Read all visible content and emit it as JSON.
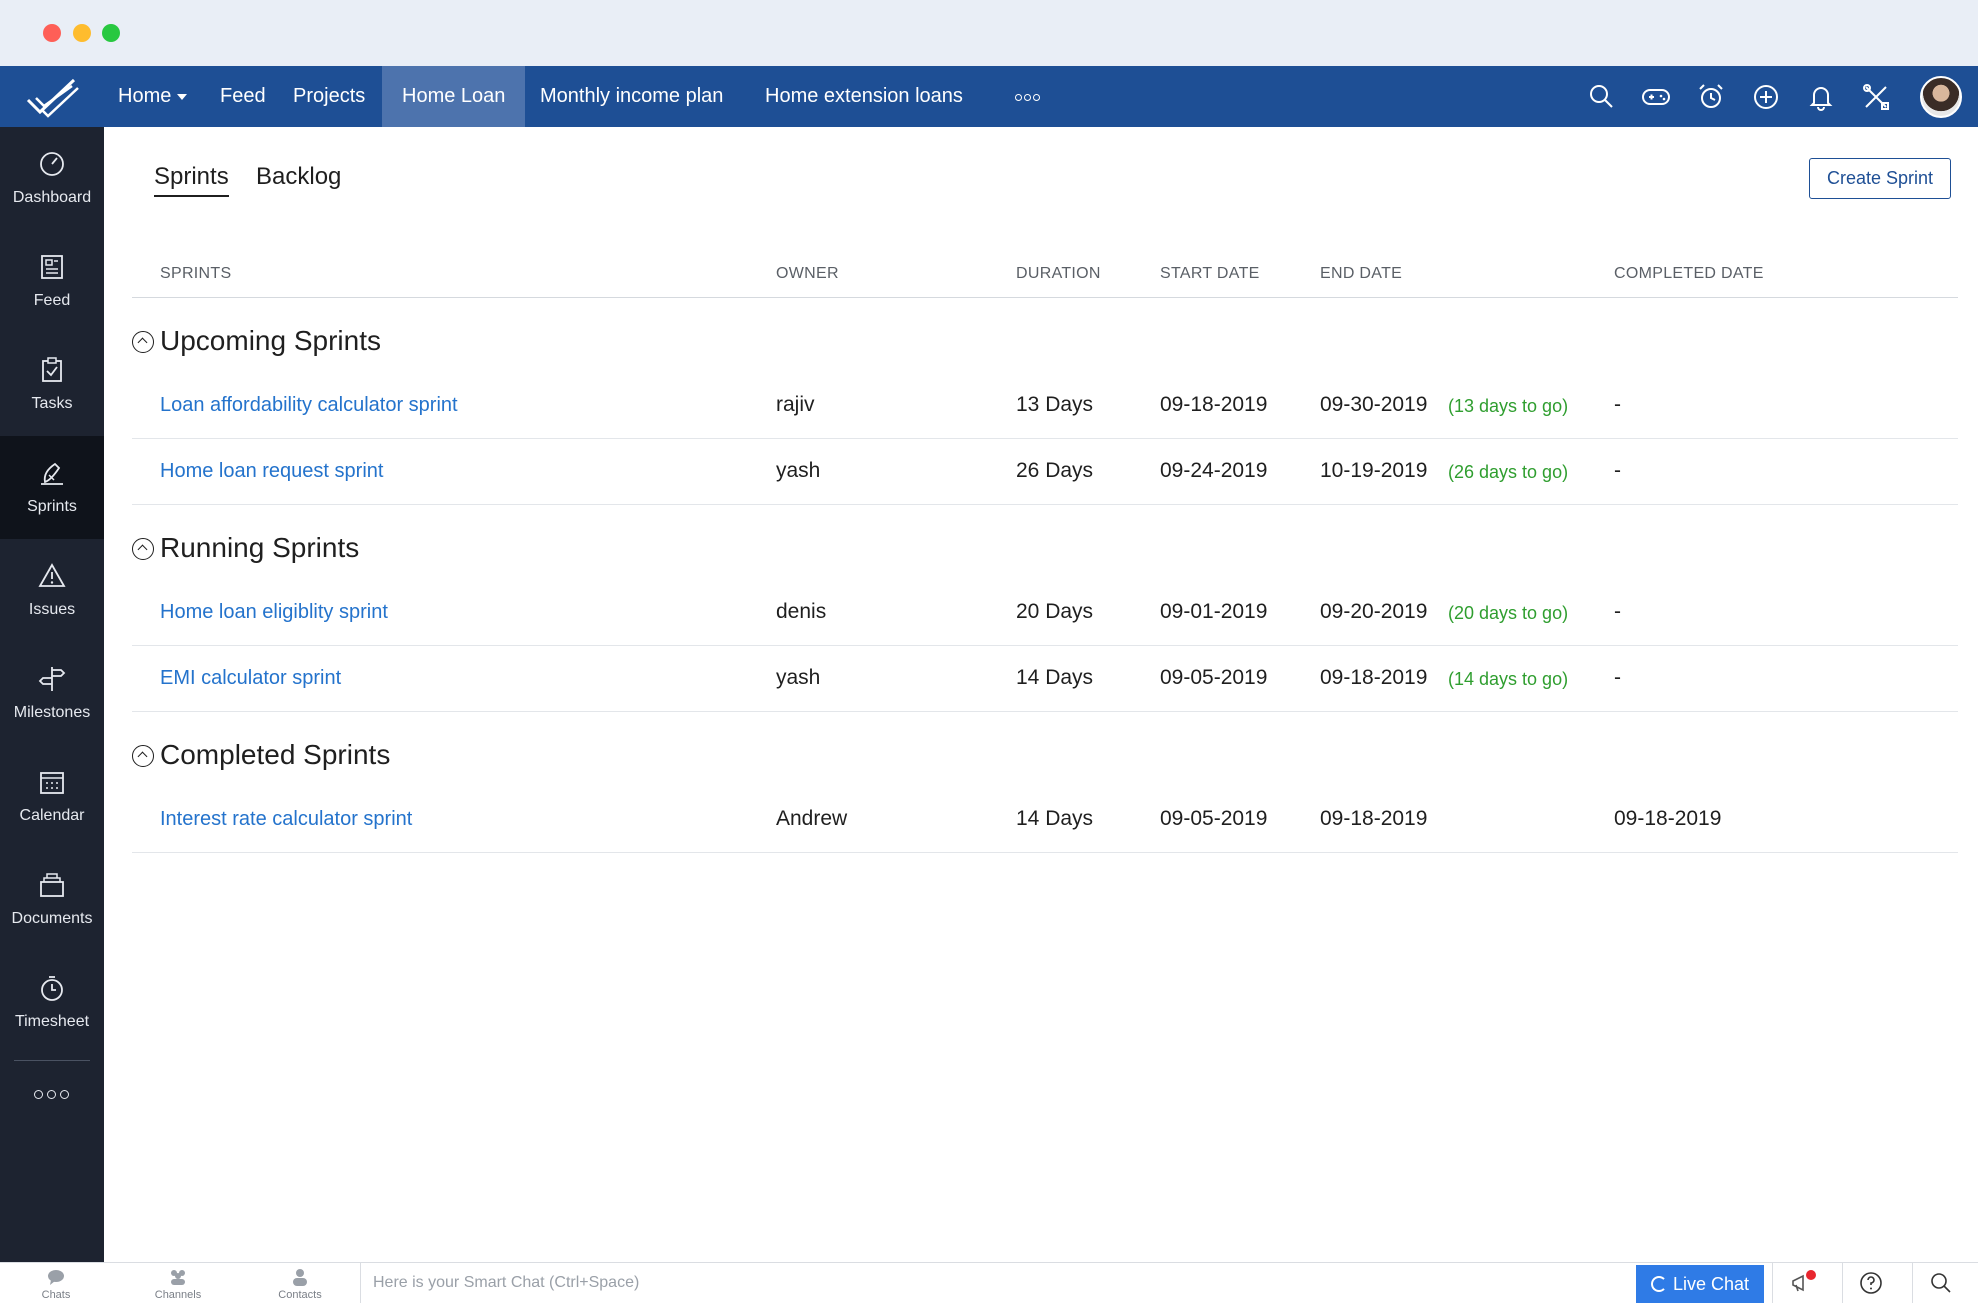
{
  "topnav": {
    "items": [
      {
        "label": "Home"
      },
      {
        "label": "Feed"
      },
      {
        "label": "Projects"
      },
      {
        "label": "Home Loan"
      },
      {
        "label": "Monthly income plan"
      },
      {
        "label": "Home extension loans"
      }
    ],
    "active": "Home Loan",
    "icons": [
      "search-icon",
      "gamepad-icon",
      "alarm-clock-icon",
      "plus-circle-icon",
      "bell-icon",
      "tools-icon"
    ]
  },
  "sidebar": {
    "items": [
      {
        "label": "Dashboard",
        "icon": "speedometer-icon"
      },
      {
        "label": "Feed",
        "icon": "newspaper-icon"
      },
      {
        "label": "Tasks",
        "icon": "clipboard-check-icon"
      },
      {
        "label": "Sprints",
        "icon": "sprint-icon"
      },
      {
        "label": "Issues",
        "icon": "warning-triangle-icon"
      },
      {
        "label": "Milestones",
        "icon": "signpost-icon"
      },
      {
        "label": "Calendar",
        "icon": "calendar-icon"
      },
      {
        "label": "Documents",
        "icon": "documents-icon"
      },
      {
        "label": "Timesheet",
        "icon": "stopwatch-icon"
      }
    ],
    "active": "Sprints"
  },
  "tabs": {
    "sprints": "Sprints",
    "backlog": "Backlog",
    "active": "Sprints"
  },
  "create_button": "Create Sprint",
  "columns": {
    "sprints": "SPRINTS",
    "owner": "OWNER",
    "duration": "DURATION",
    "start_date": "START DATE",
    "end_date": "END DATE",
    "completed_date": "COMPLETED DATE"
  },
  "sections": {
    "upcoming": {
      "title": "Upcoming Sprints",
      "rows": [
        {
          "name": "Loan affordability calculator sprint",
          "owner": "rajiv",
          "duration": "13 Days",
          "start": "09-18-2019",
          "end": "09-30-2019",
          "togo": "(13 days to go)",
          "completed": "-"
        },
        {
          "name": "Home loan request sprint",
          "owner": "yash",
          "duration": "26 Days",
          "start": "09-24-2019",
          "end": "10-19-2019",
          "togo": "(26 days to go)",
          "completed": "-"
        }
      ]
    },
    "running": {
      "title": "Running Sprints",
      "rows": [
        {
          "name": "Home loan eligiblity sprint",
          "owner": "denis",
          "duration": "20 Days",
          "start": "09-01-2019",
          "end": "09-20-2019",
          "togo": "(20 days to go)",
          "completed": "-"
        },
        {
          "name": "EMI calculator sprint",
          "owner": "yash",
          "duration": "14 Days",
          "start": "09-05-2019",
          "end": "09-18-2019",
          "togo": "(14 days to go)",
          "completed": "-"
        }
      ]
    },
    "completed": {
      "title": "Completed Sprints",
      "rows": [
        {
          "name": "Interest rate calculator sprint",
          "owner": "Andrew",
          "duration": "14 Days",
          "start": "09-05-2019",
          "end": "09-18-2019",
          "togo": "",
          "completed": "09-18-2019"
        }
      ]
    }
  },
  "bottombar": {
    "chats": "Chats",
    "channels": "Channels",
    "contacts": "Contacts",
    "chat_placeholder": "Here is your Smart Chat (Ctrl+Space)",
    "live_chat": "Live Chat",
    "icons": [
      "megaphone-icon",
      "help-icon",
      "search-icon"
    ]
  },
  "colors": {
    "nav_bg": "#1e4f95",
    "nav_active": "#4d73ad",
    "sidebar_bg": "#1d2330",
    "link": "#2473cc",
    "togo": "#2f9e2f",
    "live_chat": "#2f7be6"
  }
}
